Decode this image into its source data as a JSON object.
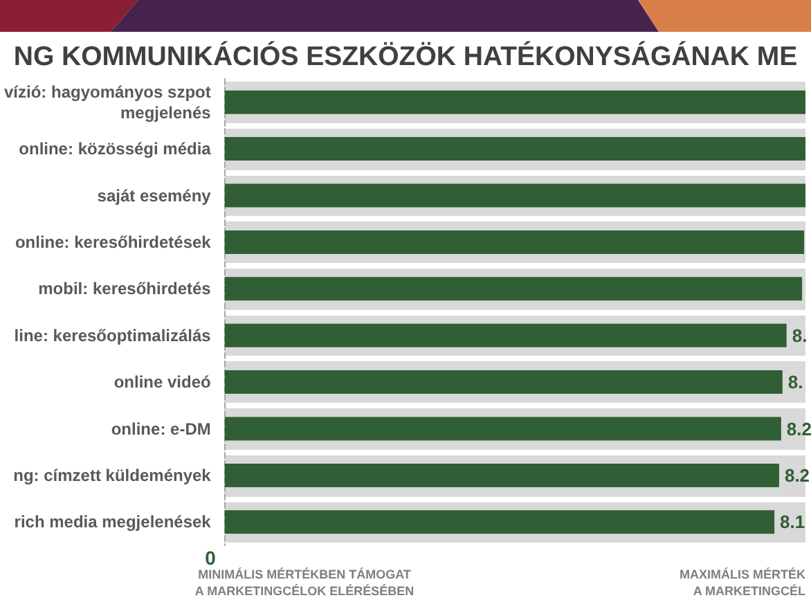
{
  "chart_data": {
    "type": "bar",
    "orientation": "horizontal",
    "title": "NG KOMMUNIKÁCIÓS ESZKÖZÖK HATÉKONYSÁGÁNAK ME",
    "categories": [
      "vízió: hagyományos szpot\nmegjelenés",
      "online: közösségi média",
      "saját esemény",
      "online: keresőhirdetések",
      "mobil: keresőhirdetés",
      "line: keresőoptimalizálás",
      "online videó",
      "online: e-DM",
      "ng: címzett küldemények",
      "rich media megjelenések"
    ],
    "values": [
      8.6,
      8.6,
      8.6,
      8.58,
      8.55,
      8.32,
      8.26,
      8.24,
      8.21,
      8.14
    ],
    "color": "#305f35",
    "value_labels": [
      null,
      null,
      null,
      null,
      null,
      "8.",
      "8.",
      "8.2",
      "8.2",
      "8.1"
    ],
    "annotations": [
      "0",
      "MINIMÁLIS MÉRTÉKBEN TÁMOGAT\nA MARKETINGCÉLOK ELÉRÉSÉBEN",
      "MAXIMÁLIS MÉRTÉK\nA MARKETINGCÉL"
    ]
  }
}
